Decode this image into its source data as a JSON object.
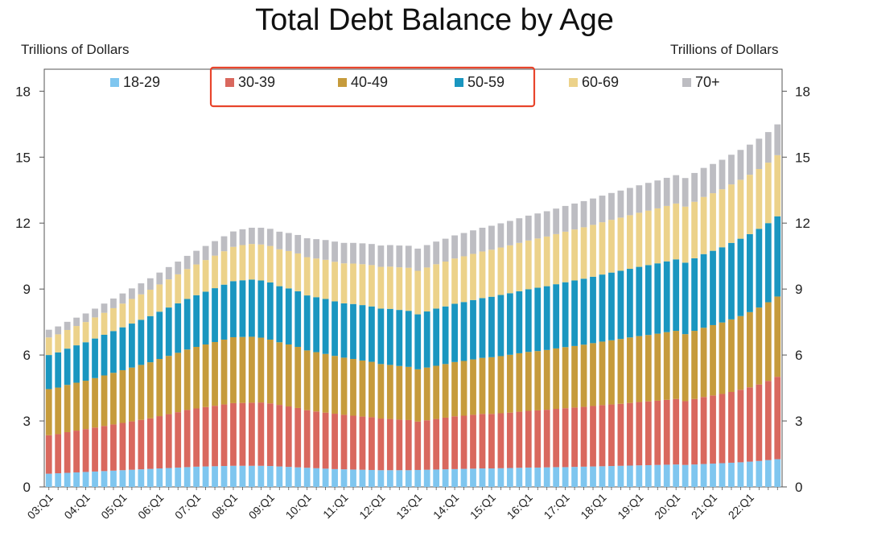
{
  "chart_data": {
    "type": "bar",
    "stacked": true,
    "title": "Total Debt Balance by Age",
    "ylabel_left": "Trillions of Dollars",
    "ylabel_right": "Trillions of Dollars",
    "ylim": [
      0,
      19
    ],
    "yticks": [
      0,
      3,
      6,
      9,
      12,
      15,
      18
    ],
    "grid": false,
    "legend_position": "top",
    "highlight": {
      "legend_items": [
        "30-39",
        "40-49",
        "50-59"
      ],
      "color": "#e8452c"
    },
    "x_tick_labels": [
      "03:Q1",
      "04:Q1",
      "05:Q1",
      "06:Q1",
      "07:Q1",
      "08:Q1",
      "09:Q1",
      "10:Q1",
      "11:Q1",
      "12:Q1",
      "13:Q1",
      "14:Q1",
      "15:Q1",
      "16:Q1",
      "17:Q1",
      "18:Q1",
      "19:Q1",
      "20:Q1",
      "21:Q1",
      "22:Q1"
    ],
    "x_tick_every": 4,
    "categories": [
      "03:Q1",
      "03:Q2",
      "03:Q3",
      "03:Q4",
      "04:Q1",
      "04:Q2",
      "04:Q3",
      "04:Q4",
      "05:Q1",
      "05:Q2",
      "05:Q3",
      "05:Q4",
      "06:Q1",
      "06:Q2",
      "06:Q3",
      "06:Q4",
      "07:Q1",
      "07:Q2",
      "07:Q3",
      "07:Q4",
      "08:Q1",
      "08:Q2",
      "08:Q3",
      "08:Q4",
      "09:Q1",
      "09:Q2",
      "09:Q3",
      "09:Q4",
      "10:Q1",
      "10:Q2",
      "10:Q3",
      "10:Q4",
      "11:Q1",
      "11:Q2",
      "11:Q3",
      "11:Q4",
      "12:Q1",
      "12:Q2",
      "12:Q3",
      "12:Q4",
      "13:Q1",
      "13:Q2",
      "13:Q3",
      "13:Q4",
      "14:Q1",
      "14:Q2",
      "14:Q3",
      "14:Q4",
      "15:Q1",
      "15:Q2",
      "15:Q3",
      "15:Q4",
      "16:Q1",
      "16:Q2",
      "16:Q3",
      "16:Q4",
      "17:Q1",
      "17:Q2",
      "17:Q3",
      "17:Q4",
      "18:Q1",
      "18:Q2",
      "18:Q3",
      "18:Q4",
      "19:Q1",
      "19:Q2",
      "19:Q3",
      "19:Q4",
      "20:Q1",
      "20:Q2",
      "20:Q3",
      "20:Q4",
      "21:Q1",
      "21:Q2",
      "21:Q3",
      "21:Q4",
      "22:Q1",
      "22:Q2",
      "22:Q3",
      "22:Q4"
    ],
    "series": [
      {
        "name": "18-29",
        "color": "#7fc6ef",
        "values": [
          0.6,
          0.62,
          0.64,
          0.66,
          0.68,
          0.7,
          0.72,
          0.74,
          0.76,
          0.78,
          0.8,
          0.82,
          0.84,
          0.86,
          0.88,
          0.9,
          0.92,
          0.93,
          0.94,
          0.95,
          0.96,
          0.96,
          0.96,
          0.96,
          0.95,
          0.93,
          0.91,
          0.89,
          0.87,
          0.85,
          0.83,
          0.81,
          0.8,
          0.79,
          0.78,
          0.77,
          0.76,
          0.76,
          0.76,
          0.76,
          0.77,
          0.78,
          0.79,
          0.8,
          0.81,
          0.82,
          0.83,
          0.84,
          0.84,
          0.85,
          0.86,
          0.87,
          0.88,
          0.88,
          0.89,
          0.9,
          0.9,
          0.91,
          0.92,
          0.93,
          0.94,
          0.95,
          0.96,
          0.97,
          0.98,
          0.99,
          1.0,
          1.01,
          1.02,
          1.0,
          1.02,
          1.04,
          1.06,
          1.08,
          1.1,
          1.12,
          1.15,
          1.18,
          1.22,
          1.26
        ]
      },
      {
        "name": "30-39",
        "color": "#d9685e",
        "values": [
          1.75,
          1.78,
          1.85,
          1.9,
          1.95,
          2.0,
          2.05,
          2.1,
          2.15,
          2.2,
          2.25,
          2.3,
          2.38,
          2.45,
          2.52,
          2.6,
          2.65,
          2.7,
          2.75,
          2.8,
          2.85,
          2.86,
          2.87,
          2.88,
          2.85,
          2.8,
          2.75,
          2.7,
          2.62,
          2.58,
          2.55,
          2.52,
          2.48,
          2.45,
          2.42,
          2.4,
          2.35,
          2.33,
          2.3,
          2.28,
          2.2,
          2.25,
          2.3,
          2.35,
          2.4,
          2.42,
          2.45,
          2.48,
          2.48,
          2.5,
          2.52,
          2.55,
          2.58,
          2.6,
          2.62,
          2.65,
          2.68,
          2.7,
          2.72,
          2.75,
          2.78,
          2.8,
          2.82,
          2.85,
          2.88,
          2.9,
          2.92,
          2.95,
          2.98,
          2.9,
          2.98,
          3.05,
          3.1,
          3.15,
          3.22,
          3.3,
          3.38,
          3.48,
          3.6,
          3.75
        ]
      },
      {
        "name": "40-49",
        "color": "#c69b3c",
        "values": [
          2.1,
          2.12,
          2.15,
          2.18,
          2.2,
          2.25,
          2.3,
          2.35,
          2.4,
          2.45,
          2.5,
          2.55,
          2.6,
          2.65,
          2.7,
          2.75,
          2.8,
          2.85,
          2.9,
          2.95,
          3.0,
          3.0,
          3.0,
          2.95,
          2.9,
          2.85,
          2.82,
          2.78,
          2.72,
          2.7,
          2.67,
          2.63,
          2.6,
          2.58,
          2.55,
          2.52,
          2.48,
          2.46,
          2.44,
          2.42,
          2.38,
          2.4,
          2.42,
          2.44,
          2.47,
          2.49,
          2.52,
          2.55,
          2.58,
          2.6,
          2.63,
          2.66,
          2.68,
          2.7,
          2.72,
          2.75,
          2.78,
          2.8,
          2.83,
          2.86,
          2.89,
          2.92,
          2.95,
          2.98,
          3.0,
          3.02,
          3.05,
          3.08,
          3.1,
          3.05,
          3.1,
          3.15,
          3.2,
          3.25,
          3.3,
          3.35,
          3.42,
          3.5,
          3.58,
          3.65
        ]
      },
      {
        "name": "50-59",
        "color": "#1a96c0",
        "values": [
          1.55,
          1.6,
          1.65,
          1.7,
          1.75,
          1.8,
          1.85,
          1.9,
          1.95,
          2.0,
          2.05,
          2.1,
          2.15,
          2.2,
          2.25,
          2.3,
          2.35,
          2.4,
          2.45,
          2.5,
          2.55,
          2.58,
          2.6,
          2.6,
          2.6,
          2.55,
          2.55,
          2.53,
          2.5,
          2.5,
          2.5,
          2.48,
          2.47,
          2.5,
          2.52,
          2.52,
          2.52,
          2.55,
          2.55,
          2.55,
          2.5,
          2.55,
          2.6,
          2.62,
          2.65,
          2.68,
          2.7,
          2.72,
          2.75,
          2.78,
          2.8,
          2.82,
          2.85,
          2.88,
          2.9,
          2.92,
          2.95,
          2.98,
          3.0,
          3.02,
          3.05,
          3.08,
          3.1,
          3.12,
          3.15,
          3.18,
          3.2,
          3.22,
          3.25,
          3.25,
          3.3,
          3.35,
          3.38,
          3.42,
          3.48,
          3.52,
          3.55,
          3.58,
          3.6,
          3.65
        ]
      },
      {
        "name": "60-69",
        "color": "#ecd28a",
        "values": [
          0.8,
          0.82,
          0.85,
          0.88,
          0.92,
          0.96,
          1.0,
          1.04,
          1.08,
          1.12,
          1.16,
          1.2,
          1.24,
          1.28,
          1.32,
          1.36,
          1.4,
          1.44,
          1.48,
          1.52,
          1.56,
          1.6,
          1.62,
          1.64,
          1.66,
          1.68,
          1.7,
          1.72,
          1.74,
          1.76,
          1.78,
          1.8,
          1.82,
          1.84,
          1.86,
          1.88,
          1.9,
          1.92,
          1.94,
          1.96,
          1.98,
          2.0,
          2.02,
          2.04,
          2.06,
          2.08,
          2.1,
          2.12,
          2.14,
          2.16,
          2.18,
          2.2,
          2.22,
          2.24,
          2.26,
          2.28,
          2.3,
          2.32,
          2.34,
          2.36,
          2.38,
          2.4,
          2.42,
          2.44,
          2.46,
          2.48,
          2.5,
          2.52,
          2.54,
          2.55,
          2.57,
          2.6,
          2.62,
          2.64,
          2.66,
          2.68,
          2.7,
          2.72,
          2.75,
          2.78
        ]
      },
      {
        "name": "70+",
        "color": "#bdbdc2",
        "values": [
          0.35,
          0.36,
          0.37,
          0.38,
          0.39,
          0.4,
          0.42,
          0.44,
          0.46,
          0.48,
          0.5,
          0.52,
          0.54,
          0.56,
          0.58,
          0.6,
          0.62,
          0.64,
          0.66,
          0.68,
          0.7,
          0.72,
          0.74,
          0.76,
          0.78,
          0.8,
          0.82,
          0.84,
          0.86,
          0.88,
          0.9,
          0.92,
          0.93,
          0.94,
          0.95,
          0.96,
          0.97,
          0.98,
          0.99,
          1.0,
          1.01,
          1.02,
          1.03,
          1.04,
          1.05,
          1.06,
          1.07,
          1.08,
          1.09,
          1.1,
          1.11,
          1.12,
          1.13,
          1.14,
          1.15,
          1.16,
          1.17,
          1.18,
          1.19,
          1.2,
          1.21,
          1.22,
          1.23,
          1.24,
          1.25,
          1.26,
          1.27,
          1.28,
          1.29,
          1.3,
          1.31,
          1.32,
          1.33,
          1.34,
          1.35,
          1.36,
          1.37,
          1.38,
          1.39,
          1.4
        ]
      }
    ]
  }
}
